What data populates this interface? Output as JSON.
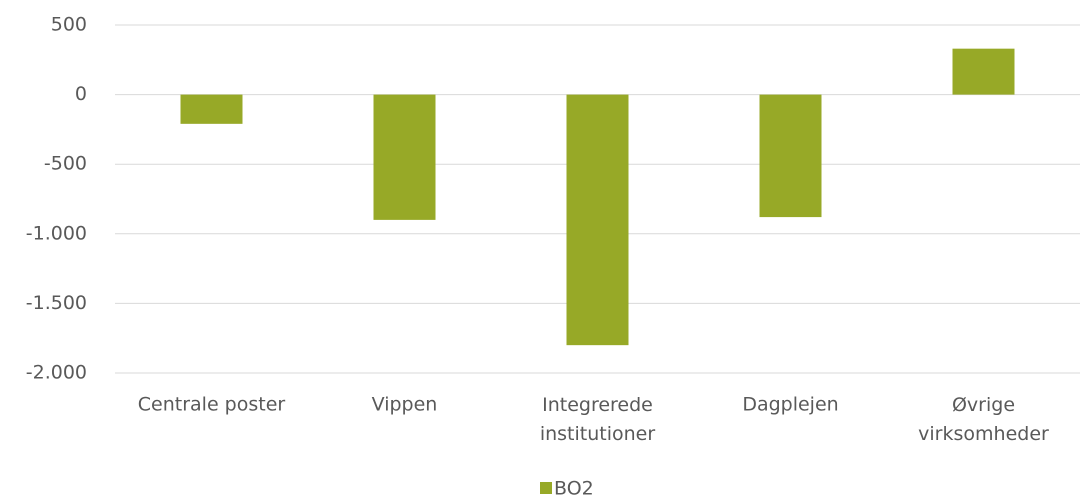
{
  "chart_data": {
    "type": "bar",
    "categories": [
      "Centrale poster",
      "Vippen",
      "Integrerede institutioner",
      "Dagplejen",
      "Øvrige virksomheder"
    ],
    "series": [
      {
        "name": "BO2",
        "color": "#97a927",
        "values": [
          -210,
          -900,
          -1800,
          -880,
          330
        ]
      }
    ],
    "ylim": [
      -2000,
      500
    ],
    "yticks": [
      500,
      0,
      -500,
      {
        "value": -1000,
        "label": "-1.000"
      },
      {
        "value": -1500,
        "label": "-1.500"
      },
      {
        "value": -2000,
        "label": "-2.000"
      }
    ],
    "grid": true,
    "legend": "bottom"
  }
}
